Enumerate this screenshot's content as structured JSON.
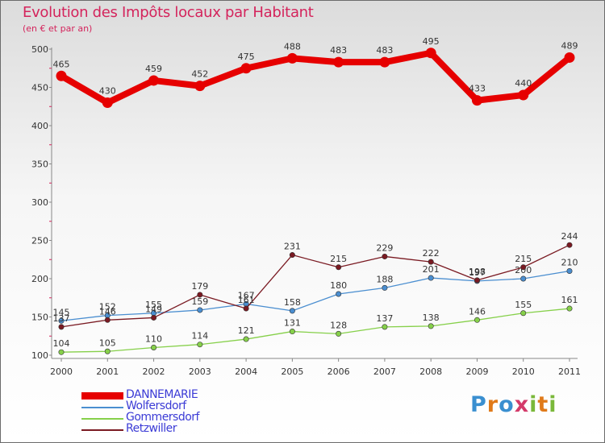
{
  "header": {
    "title": "Evolution des Impôts locaux par Habitant",
    "subtitle": "(en € et par an)"
  },
  "logo": {
    "text": "Proxiti",
    "letter_colors": [
      "#3a8fd0",
      "#e07a1a",
      "#3a8fd0",
      "#d43a6a",
      "#7ab83a",
      "#e07a1a",
      "#7ab83a"
    ]
  },
  "chart_data": {
    "type": "line",
    "x": [
      "2000",
      "2001",
      "2002",
      "2003",
      "2004",
      "2005",
      "2006",
      "2007",
      "2008",
      "2009",
      "2010",
      "2011"
    ],
    "yticks": [
      "100",
      "150",
      "200",
      "250",
      "300",
      "350",
      "400",
      "450",
      "500"
    ],
    "ylim": [
      100,
      500
    ],
    "grid": false,
    "legend_position": "bottom-left",
    "series": [
      {
        "name": "DANNEMARIE",
        "color": "#e60000",
        "values": [
          465,
          430,
          459,
          452,
          475,
          488,
          483,
          483,
          495,
          433,
          440,
          489
        ]
      },
      {
        "name": "Wolfersdorf",
        "color": "#4a8ed0",
        "values": [
          145,
          152,
          155,
          159,
          167,
          158,
          180,
          188,
          201,
          197,
          200,
          210
        ]
      },
      {
        "name": "Gommersdorf",
        "color": "#86d04a",
        "values": [
          104,
          105,
          110,
          114,
          121,
          131,
          128,
          137,
          138,
          146,
          155,
          161
        ]
      },
      {
        "name": "Retzwiller",
        "color": "#7a1a22",
        "values": [
          137,
          146,
          149,
          179,
          161,
          231,
          215,
          229,
          222,
          198,
          215,
          244
        ]
      }
    ]
  }
}
